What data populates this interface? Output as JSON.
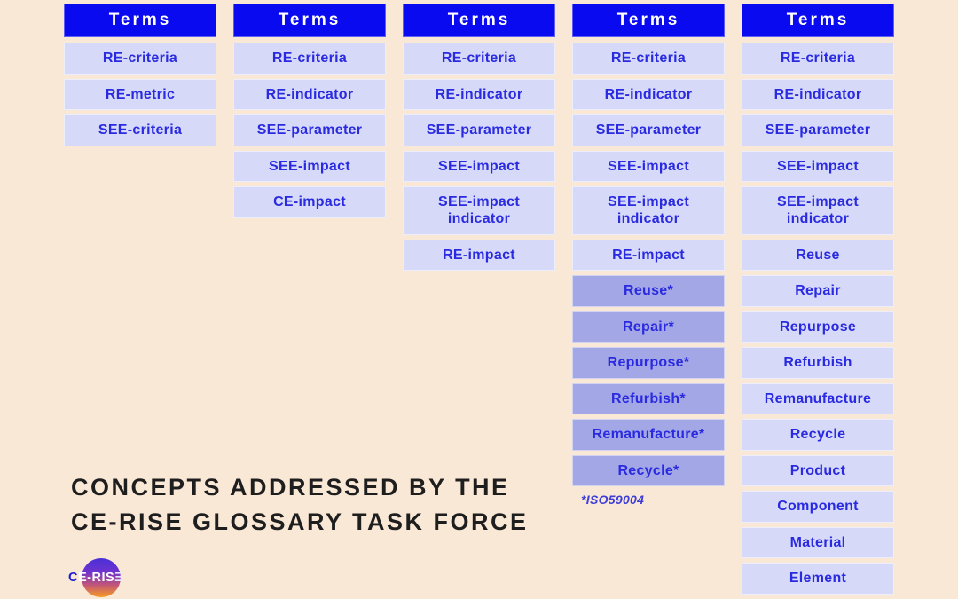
{
  "colors": {
    "background": "#fae8d6",
    "header_bg": "#0a0af0",
    "cell_bg": "#d6daf8",
    "cell_highlight_bg": "#a3a7e6",
    "term_text": "#2a2ae0",
    "caption_text": "#1e1e1e",
    "footnote_text": "#3d3dd8",
    "logo_gradient_top": "#4b2fd8",
    "logo_gradient_bottom": "#f59c23"
  },
  "columns": [
    {
      "header": "Terms",
      "cells": [
        {
          "label": "RE-criteria"
        },
        {
          "label": "RE-metric"
        },
        {
          "label": "SEE-criteria"
        }
      ]
    },
    {
      "header": "Terms",
      "cells": [
        {
          "label": "RE-criteria"
        },
        {
          "label": "RE-indicator"
        },
        {
          "label": "SEE-parameter"
        },
        {
          "label": "SEE-impact"
        },
        {
          "label": "CE-impact"
        }
      ]
    },
    {
      "header": "Terms",
      "cells": [
        {
          "label": "RE-criteria"
        },
        {
          "label": "RE-indicator"
        },
        {
          "label": "SEE-parameter"
        },
        {
          "label": "SEE-impact"
        },
        {
          "label": "SEE-impact indicator",
          "tall": true
        },
        {
          "label": "RE-impact"
        }
      ]
    },
    {
      "header": "Terms",
      "cells": [
        {
          "label": "RE-criteria"
        },
        {
          "label": "RE-indicator"
        },
        {
          "label": "SEE-parameter"
        },
        {
          "label": "SEE-impact"
        },
        {
          "label": "SEE-impact indicator",
          "tall": true
        },
        {
          "label": "RE-impact"
        },
        {
          "label": "Reuse*",
          "highlight": true
        },
        {
          "label": "Repair*",
          "highlight": true
        },
        {
          "label": "Repurpose*",
          "highlight": true
        },
        {
          "label": "Refurbish*",
          "highlight": true
        },
        {
          "label": "Remanufacture*",
          "highlight": true
        },
        {
          "label": "Recycle*",
          "highlight": true
        }
      ],
      "footnote": "*ISO59004"
    },
    {
      "header": "Terms",
      "cells": [
        {
          "label": "RE-criteria"
        },
        {
          "label": "RE-indicator"
        },
        {
          "label": "SEE-parameter"
        },
        {
          "label": "SEE-impact"
        },
        {
          "label": "SEE-impact indicator",
          "tall": true
        },
        {
          "label": "Reuse"
        },
        {
          "label": "Repair"
        },
        {
          "label": "Repurpose"
        },
        {
          "label": "Refurbish"
        },
        {
          "label": "Remanufacture"
        },
        {
          "label": "Recycle"
        },
        {
          "label": "Product"
        },
        {
          "label": "Component"
        },
        {
          "label": "Material"
        },
        {
          "label": "Element"
        }
      ]
    }
  ],
  "caption": {
    "line1": "CONCEPTS ADDRESSED BY THE",
    "line2": "CE-RISE GLOSSARY TASK FORCE"
  },
  "logo": {
    "part1": "C",
    "part2": "E-RIS",
    "part3": "Ǝ"
  }
}
